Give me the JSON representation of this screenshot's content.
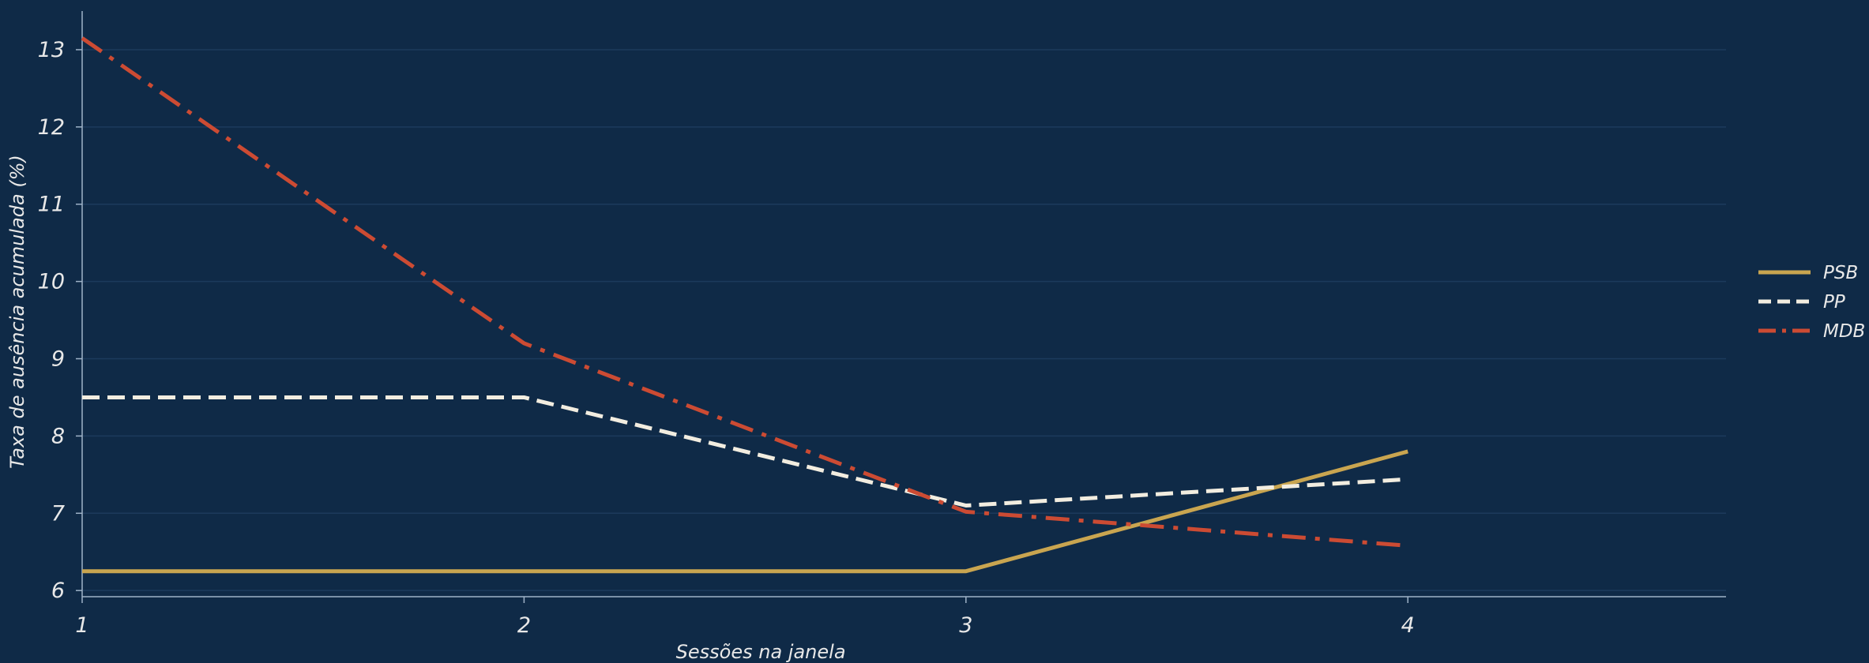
{
  "colors": {
    "background": "#0f2a47",
    "grid": "#1c3a5c",
    "axis": "#9fb3c8",
    "text": "#e8e8e8"
  },
  "chart_data": {
    "type": "line",
    "title": "",
    "xlabel": "Sessões na janela",
    "ylabel": "Taxa de ausência acumulada (%)",
    "x": [
      1,
      2,
      3,
      4
    ],
    "xticks": [
      1,
      2,
      3,
      4
    ],
    "yticks": [
      6,
      7,
      8,
      9,
      10,
      11,
      12,
      13
    ],
    "xlim": [
      1,
      4.72
    ],
    "ylim": [
      5.92,
      13.5
    ],
    "grid": "horizontal",
    "legend_position": "right",
    "series": [
      {
        "name": "PSB",
        "values": [
          6.25,
          6.25,
          6.25,
          7.8
        ],
        "color": "#c9a550",
        "dash": "solid"
      },
      {
        "name": "PP",
        "values": [
          8.5,
          8.5,
          7.1,
          7.44
        ],
        "color": "#f2ede0",
        "dash": "dashed"
      },
      {
        "name": "MDB",
        "values": [
          13.15,
          9.2,
          7.02,
          6.58
        ],
        "color": "#cc4b33",
        "dash": "dashdot"
      }
    ]
  }
}
